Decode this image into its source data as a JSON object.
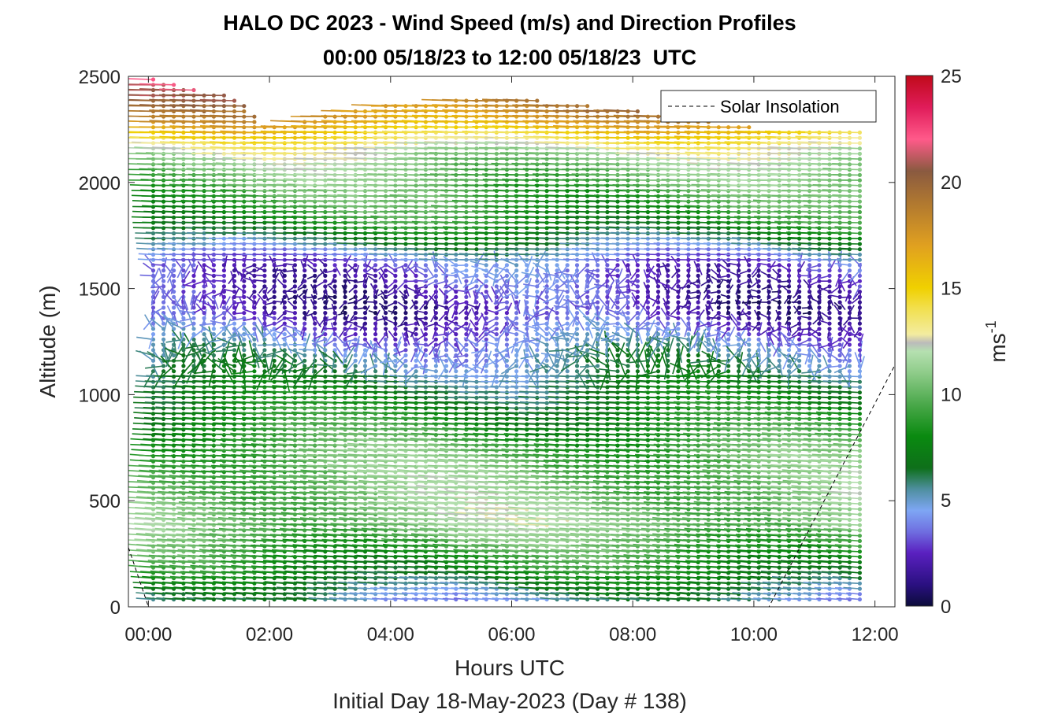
{
  "chart_data": {
    "type": "wind-barb-profile",
    "title": "HALO DC 2023 - Wind Speed (m/s) and Direction Profiles",
    "subtitle": "00:00 05/18/23 to 12:00 05/18/23  UTC",
    "xlabel": "Hours UTC",
    "xlabel2": "Initial Day 18-May-2023 (Day # 138)",
    "ylabel": "Altitude (m)",
    "colorbar_label": "ms",
    "colorbar_label_sup": "-1",
    "xlim": [
      -0.33,
      12.33
    ],
    "ylim": [
      0,
      2500
    ],
    "x_tick_values": [
      0,
      2,
      4,
      6,
      8,
      10,
      12
    ],
    "x_tick_labels": [
      "00:00",
      "02:00",
      "04:00",
      "06:00",
      "08:00",
      "10:00",
      "12:00"
    ],
    "y_ticks": [
      0,
      500,
      1000,
      1500,
      2000,
      2500
    ],
    "colorbar_ticks": [
      0,
      5,
      10,
      15,
      20,
      25
    ],
    "colorbar_range": [
      0,
      25
    ],
    "legend": {
      "label": "Solar Insolation",
      "position": "top-right"
    },
    "colormap": [
      [
        0,
        "#0b0b3a"
      ],
      [
        1,
        "#2a1080"
      ],
      [
        2.5,
        "#5a20c0"
      ],
      [
        3.5,
        "#6f6ee0"
      ],
      [
        4.5,
        "#7ea6f4"
      ],
      [
        5.5,
        "#4f8fa0"
      ],
      [
        6.5,
        "#0e6f1a"
      ],
      [
        8,
        "#0a8a10"
      ],
      [
        9.5,
        "#4aa84a"
      ],
      [
        11,
        "#8fcc8a"
      ],
      [
        12,
        "#b5e0b0"
      ],
      [
        12.4,
        "#bbbbbb"
      ],
      [
        12.8,
        "#f3eca0"
      ],
      [
        14,
        "#f2e050"
      ],
      [
        15,
        "#f0d000"
      ],
      [
        17,
        "#e0a020"
      ],
      [
        19,
        "#b07830"
      ],
      [
        20.5,
        "#8a5a40"
      ],
      [
        22,
        "#ff5a8a"
      ],
      [
        23.5,
        "#e01c5a"
      ],
      [
        25,
        "#c00a1a"
      ]
    ],
    "sample_times_hours": [
      0.08,
      0.25,
      0.42,
      0.58,
      0.75,
      0.92,
      1.08,
      1.25,
      1.42,
      1.58,
      1.75,
      1.92,
      2.08,
      2.25,
      2.42,
      2.58,
      2.75,
      2.92,
      3.08,
      3.25,
      3.42,
      3.58,
      3.75,
      3.92,
      4.08,
      4.25,
      4.42,
      4.58,
      4.75,
      4.92,
      5.08,
      5.25,
      5.42,
      5.58,
      5.75,
      5.92,
      6.08,
      6.25,
      6.42,
      6.58,
      6.75,
      6.92,
      7.08,
      7.25,
      7.42,
      7.58,
      7.75,
      7.92,
      8.08,
      8.25,
      8.42,
      8.58,
      8.75,
      8.92,
      9.08,
      9.25,
      9.42,
      9.58,
      9.75,
      9.92,
      10.08,
      10.25,
      10.42,
      10.58,
      10.75,
      10.92,
      11.08,
      11.25,
      11.42,
      11.58,
      11.75
    ],
    "altitude_spacing_m": 25,
    "lowest_altitude_m": 35,
    "speed_profile_m_s": [
      {
        "alt": 0,
        "speed": 4.5
      },
      {
        "alt": 150,
        "speed": 7.5
      },
      {
        "alt": 400,
        "speed": 11
      },
      {
        "alt": 700,
        "speed": 10
      },
      {
        "alt": 1000,
        "speed": 7
      },
      {
        "alt": 1200,
        "speed": 5
      },
      {
        "alt": 1400,
        "speed": 2
      },
      {
        "alt": 1600,
        "speed": 3
      },
      {
        "alt": 1800,
        "speed": 8
      },
      {
        "alt": 2100,
        "speed": 11
      },
      {
        "alt": 2300,
        "speed": 15
      }
    ],
    "wind_direction_note": "predominantly westerly; near-calm and variable between about 1100 m and 1600 m",
    "data_top_m": [
      {
        "t": 0,
        "alt": 2490
      },
      {
        "t": 1.5,
        "alt": 2400
      },
      {
        "t": 2.0,
        "alt": 2260
      },
      {
        "t": 4.0,
        "alt": 2370
      },
      {
        "t": 6.0,
        "alt": 2400
      },
      {
        "t": 8.0,
        "alt": 2340
      },
      {
        "t": 10.0,
        "alt": 2260
      },
      {
        "t": 11.75,
        "alt": 2240
      }
    ],
    "solar_insolation_line": [
      {
        "t": -0.33,
        "alt": 280
      },
      {
        "t": 0.0,
        "alt": 0
      },
      {
        "t": 10.25,
        "alt": 0
      },
      {
        "t": 12.33,
        "alt": 1140
      }
    ]
  }
}
